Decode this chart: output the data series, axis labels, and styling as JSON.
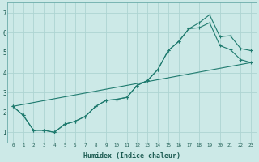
{
  "xlabel": "Humidex (Indice chaleur)",
  "background_color": "#cce9e7",
  "grid_color": "#aed4d2",
  "line_color": "#1e7a6e",
  "xlim": [
    -0.5,
    23.5
  ],
  "ylim": [
    0.5,
    7.5
  ],
  "line1_x": [
    0,
    1,
    2,
    3,
    4,
    5,
    6,
    7,
    8,
    9,
    10,
    11,
    12,
    13,
    14,
    15,
    16,
    17,
    18,
    19,
    20,
    21,
    22,
    23
  ],
  "line1_y": [
    2.3,
    1.85,
    1.1,
    1.1,
    1.0,
    1.4,
    1.55,
    1.8,
    2.3,
    2.6,
    2.65,
    2.75,
    3.35,
    3.6,
    4.15,
    5.1,
    5.55,
    6.2,
    6.5,
    6.9,
    5.8,
    5.85,
    5.2,
    5.1
  ],
  "line2_x": [
    0,
    1,
    2,
    3,
    4,
    5,
    6,
    7,
    8,
    9,
    10,
    11,
    12,
    13,
    14,
    15,
    16,
    17,
    18,
    19,
    20,
    21,
    22,
    23
  ],
  "line2_y": [
    2.3,
    1.85,
    1.1,
    1.1,
    1.0,
    1.4,
    1.55,
    1.8,
    2.3,
    2.6,
    2.65,
    2.75,
    3.35,
    3.6,
    4.15,
    5.1,
    5.55,
    6.2,
    6.25,
    6.5,
    5.35,
    5.15,
    4.65,
    4.5
  ],
  "line3_x": [
    0,
    23
  ],
  "line3_y": [
    2.3,
    4.5
  ],
  "yticks": [
    1,
    2,
    3,
    4,
    5,
    6,
    7
  ],
  "xticks": [
    0,
    1,
    2,
    3,
    4,
    5,
    6,
    7,
    8,
    9,
    10,
    11,
    12,
    13,
    14,
    15,
    16,
    17,
    18,
    19,
    20,
    21,
    22,
    23
  ]
}
